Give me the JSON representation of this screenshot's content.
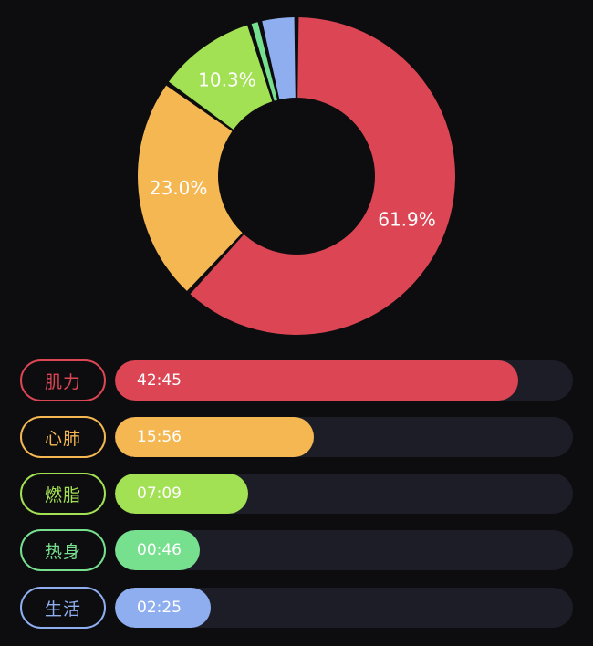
{
  "chart_data": {
    "type": "pie",
    "donut": true,
    "slices": [
      {
        "label": "肌力",
        "percent": 61.9,
        "display": "61.9%",
        "color": "#dc4654"
      },
      {
        "label": "心肺",
        "percent": 23.0,
        "display": "23.0%",
        "color": "#f4b752"
      },
      {
        "label": "燃脂",
        "percent": 10.3,
        "display": "10.3%",
        "color": "#a2e054"
      },
      {
        "label": "热身",
        "percent": 1.1,
        "display": "",
        "color": "#77e08f"
      },
      {
        "label": "生活",
        "percent": 3.7,
        "display": "",
        "color": "#8eaef0"
      }
    ]
  },
  "bars": [
    {
      "label": "肌力",
      "time": "42:45",
      "fraction": 0.88,
      "color": "#dc4654"
    },
    {
      "label": "心肺",
      "time": "15:56",
      "fraction": 0.435,
      "color": "#f4b752"
    },
    {
      "label": "燃脂",
      "time": "07:09",
      "fraction": 0.29,
      "color": "#a2e054"
    },
    {
      "label": "热身",
      "time": "00:46",
      "fraction": 0.185,
      "color": "#77e08f"
    },
    {
      "label": "生活",
      "time": "02:25",
      "fraction": 0.21,
      "color": "#8eaef0"
    }
  ]
}
